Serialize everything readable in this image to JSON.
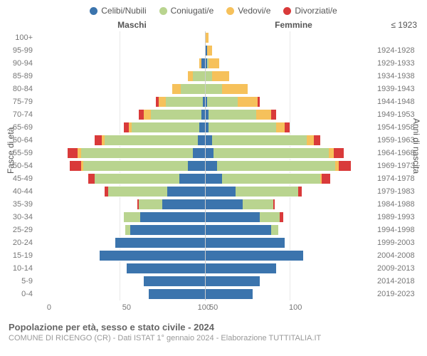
{
  "legend": [
    {
      "label": "Celibi/Nubili",
      "color": "#3b74ad"
    },
    {
      "label": "Coniugati/e",
      "color": "#b9d48f"
    },
    {
      "label": "Vedovi/e",
      "color": "#f6c15b"
    },
    {
      "label": "Divorziati/e",
      "color": "#d93a3a"
    }
  ],
  "header": {
    "male_label": "Maschi",
    "female_label": "Femmine",
    "top_right_label": "≤ 1923"
  },
  "axis_titles": {
    "left": "Fasce di età",
    "right": "Anni di nascita"
  },
  "xaxis": {
    "max": 100,
    "ticks": [
      100,
      50,
      0,
      50,
      100
    ]
  },
  "age_labels": [
    "100+",
    "95-99",
    "90-94",
    "85-89",
    "80-84",
    "75-79",
    "70-74",
    "65-69",
    "60-64",
    "55-59",
    "50-54",
    "45-49",
    "40-44",
    "35-39",
    "30-34",
    "25-29",
    "20-24",
    "15-19",
    "10-14",
    "5-9",
    "0-4"
  ],
  "birth_labels": [
    "1924-1928",
    "1929-1933",
    "1934-1938",
    "1939-1943",
    "1944-1948",
    "1949-1953",
    "1954-1958",
    "1959-1963",
    "1964-1968",
    "1969-1973",
    "1974-1978",
    "1979-1983",
    "1984-1988",
    "1989-1993",
    "1994-1998",
    "1999-2003",
    "2004-2008",
    "2009-2013",
    "2014-2018",
    "2019-2023"
  ],
  "male": [
    {
      "single": 0,
      "married": 0,
      "widowed": 0,
      "divorced": 0
    },
    {
      "single": 0,
      "married": 0,
      "widowed": 0,
      "divorced": 0
    },
    {
      "single": 2,
      "married": 0,
      "widowed": 1,
      "divorced": 0
    },
    {
      "single": 0,
      "married": 7,
      "widowed": 3,
      "divorced": 0
    },
    {
      "single": 0,
      "married": 14,
      "widowed": 5,
      "divorced": 0
    },
    {
      "single": 1,
      "married": 22,
      "widowed": 4,
      "divorced": 2
    },
    {
      "single": 2,
      "married": 30,
      "widowed": 4,
      "divorced": 3
    },
    {
      "single": 3,
      "married": 40,
      "widowed": 2,
      "divorced": 3
    },
    {
      "single": 4,
      "married": 55,
      "widowed": 2,
      "divorced": 4
    },
    {
      "single": 7,
      "married": 66,
      "widowed": 2,
      "divorced": 6
    },
    {
      "single": 10,
      "married": 62,
      "widowed": 1,
      "divorced": 7
    },
    {
      "single": 15,
      "married": 50,
      "widowed": 0,
      "divorced": 4
    },
    {
      "single": 22,
      "married": 35,
      "widowed": 0,
      "divorced": 2
    },
    {
      "single": 25,
      "married": 14,
      "widowed": 0,
      "divorced": 1
    },
    {
      "single": 38,
      "married": 10,
      "widowed": 0,
      "divorced": 0
    },
    {
      "single": 44,
      "married": 3,
      "widowed": 0,
      "divorced": 0
    },
    {
      "single": 53,
      "married": 0,
      "widowed": 0,
      "divorced": 0
    },
    {
      "single": 62,
      "married": 0,
      "widowed": 0,
      "divorced": 0
    },
    {
      "single": 46,
      "married": 0,
      "widowed": 0,
      "divorced": 0
    },
    {
      "single": 36,
      "married": 0,
      "widowed": 0,
      "divorced": 0
    },
    {
      "single": 33,
      "married": 0,
      "widowed": 0,
      "divorced": 0
    }
  ],
  "female": [
    {
      "single": 0,
      "married": 0,
      "widowed": 2,
      "divorced": 0
    },
    {
      "single": 1,
      "married": 0,
      "widowed": 3,
      "divorced": 0
    },
    {
      "single": 1,
      "married": 1,
      "widowed": 6,
      "divorced": 0
    },
    {
      "single": 0,
      "married": 4,
      "widowed": 10,
      "divorced": 0
    },
    {
      "single": 0,
      "married": 10,
      "widowed": 15,
      "divorced": 0
    },
    {
      "single": 1,
      "married": 18,
      "widowed": 12,
      "divorced": 1
    },
    {
      "single": 2,
      "married": 28,
      "widowed": 9,
      "divorced": 3
    },
    {
      "single": 2,
      "married": 40,
      "widowed": 5,
      "divorced": 3
    },
    {
      "single": 4,
      "married": 56,
      "widowed": 4,
      "divorced": 4
    },
    {
      "single": 5,
      "married": 68,
      "widowed": 3,
      "divorced": 6
    },
    {
      "single": 7,
      "married": 70,
      "widowed": 2,
      "divorced": 7
    },
    {
      "single": 10,
      "married": 58,
      "widowed": 1,
      "divorced": 5
    },
    {
      "single": 18,
      "married": 37,
      "widowed": 0,
      "divorced": 2
    },
    {
      "single": 22,
      "married": 18,
      "widowed": 0,
      "divorced": 1
    },
    {
      "single": 32,
      "married": 12,
      "widowed": 0,
      "divorced": 2
    },
    {
      "single": 39,
      "married": 4,
      "widowed": 0,
      "divorced": 0
    },
    {
      "single": 47,
      "married": 0,
      "widowed": 0,
      "divorced": 0
    },
    {
      "single": 58,
      "married": 0,
      "widowed": 0,
      "divorced": 0
    },
    {
      "single": 42,
      "married": 0,
      "widowed": 0,
      "divorced": 0
    },
    {
      "single": 32,
      "married": 0,
      "widowed": 0,
      "divorced": 0
    },
    {
      "single": 28,
      "married": 0,
      "widowed": 0,
      "divorced": 0
    }
  ],
  "colors": {
    "single": "#3b74ad",
    "married": "#b9d48f",
    "widowed": "#f6c15b",
    "divorced": "#d93a3a",
    "grid": "#e8e8e8",
    "centerline": "#cccccc"
  },
  "footer": {
    "title": "Popolazione per età, sesso e stato civile - 2024",
    "subtitle": "COMUNE DI RICENGO (CR) - Dati ISTAT 1° gennaio 2024 - Elaborazione TUTTITALIA.IT"
  }
}
